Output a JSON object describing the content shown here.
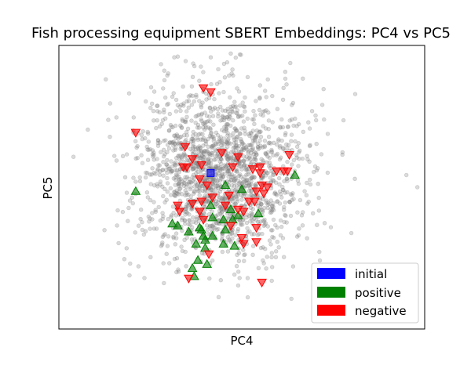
{
  "chart_data": {
    "type": "scatter",
    "title": "Fish processing equipment SBERT Embeddings: PC4 vs PC5",
    "xlabel": "PC4",
    "ylabel": "PC5",
    "xlim": [
      -4.2,
      5.8
    ],
    "ylim": [
      -4.0,
      3.0
    ],
    "grid": false,
    "ticks_visible": false,
    "legend": {
      "placement": "bottom-right",
      "entries": [
        "initial",
        "positive",
        "negative"
      ]
    },
    "background_points": {
      "name": "",
      "count": 1800,
      "color": "#7f7f7f",
      "marker": "circle",
      "center": [
        0.2,
        -0.2
      ],
      "spread": [
        1.15,
        1.05
      ],
      "extreme_outliers": [
        [
          -3.8,
          0.25
        ],
        [
          0.5,
          2.8
        ],
        [
          5.3,
          -0.2
        ],
        [
          5.6,
          -0.5
        ],
        [
          3.9,
          1.8
        ]
      ]
    },
    "series": [
      {
        "name": "initial",
        "color": "#0000ff",
        "marker": "square",
        "points": [
          [
            -0.05,
            -0.15
          ]
        ]
      },
      {
        "name": "positive",
        "color": "#008000",
        "marker": "triangle-up",
        "points": [
          [
            -2.1,
            -0.6
          ],
          [
            -1.1,
            -1.4
          ],
          [
            -0.95,
            -1.45
          ],
          [
            -0.35,
            -1.5
          ],
          [
            -0.65,
            -1.6
          ],
          [
            -0.2,
            -1.8
          ],
          [
            -0.2,
            -2.0
          ],
          [
            -0.25,
            -1.7
          ],
          [
            -0.45,
            -1.9
          ],
          [
            -0.4,
            -2.3
          ],
          [
            -0.15,
            -2.4
          ],
          [
            -0.5,
            -2.7
          ],
          [
            -0.55,
            -2.5
          ],
          [
            0.3,
            -1.3
          ],
          [
            0.55,
            -1.3
          ],
          [
            0.7,
            -1.2
          ],
          [
            0.35,
            -1.55
          ],
          [
            0.0,
            -1.25
          ],
          [
            0.3,
            -1.9
          ],
          [
            0.6,
            -1.95
          ],
          [
            0.0,
            -1.7
          ],
          [
            0.35,
            -0.45
          ],
          [
            0.8,
            -0.55
          ],
          [
            1.25,
            -1.15
          ],
          [
            2.25,
            -0.2
          ],
          [
            -0.05,
            -0.95
          ],
          [
            0.5,
            -1.05
          ],
          [
            -0.3,
            -1.55
          ]
        ]
      },
      {
        "name": "negative",
        "color": "#ff0000",
        "marker": "triangle-down",
        "points": [
          [
            -2.1,
            0.85
          ],
          [
            -0.25,
            1.95
          ],
          [
            -0.05,
            1.85
          ],
          [
            -0.75,
            0.5
          ],
          [
            -0.55,
            0.2
          ],
          [
            -0.7,
            0.0
          ],
          [
            -0.8,
            0.0
          ],
          [
            -0.35,
            -0.3
          ],
          [
            -0.15,
            -0.45
          ],
          [
            0.0,
            -0.75
          ],
          [
            0.25,
            0.35
          ],
          [
            0.7,
            0.25
          ],
          [
            1.1,
            -0.05
          ],
          [
            1.3,
            -0.15
          ],
          [
            1.35,
            -0.45
          ],
          [
            1.5,
            -0.5
          ],
          [
            1.4,
            -0.65
          ],
          [
            1.2,
            -0.6
          ],
          [
            1.15,
            -0.85
          ],
          [
            1.0,
            -0.85
          ],
          [
            0.85,
            -1.1
          ],
          [
            0.7,
            -1.05
          ],
          [
            0.35,
            -0.95
          ],
          [
            0.45,
            -0.7
          ],
          [
            -0.3,
            -0.85
          ],
          [
            -0.55,
            -0.9
          ],
          [
            -0.9,
            -1.1
          ],
          [
            -0.35,
            -1.1
          ],
          [
            -0.25,
            -1.3
          ],
          [
            0.5,
            -1.45
          ],
          [
            0.8,
            -1.75
          ],
          [
            0.85,
            -1.9
          ],
          [
            1.2,
            -1.5
          ],
          [
            1.2,
            -1.85
          ],
          [
            -0.1,
            -2.15
          ],
          [
            -0.65,
            -2.75
          ],
          [
            1.35,
            -2.85
          ],
          [
            1.75,
            -0.1
          ],
          [
            1.95,
            -0.1
          ],
          [
            2.05,
            -0.1
          ],
          [
            2.1,
            0.3
          ],
          [
            1.3,
            0.0
          ],
          [
            0.55,
            0.0
          ],
          [
            -0.3,
            0.05
          ],
          [
            -0.95,
            -0.95
          ]
        ]
      }
    ]
  }
}
